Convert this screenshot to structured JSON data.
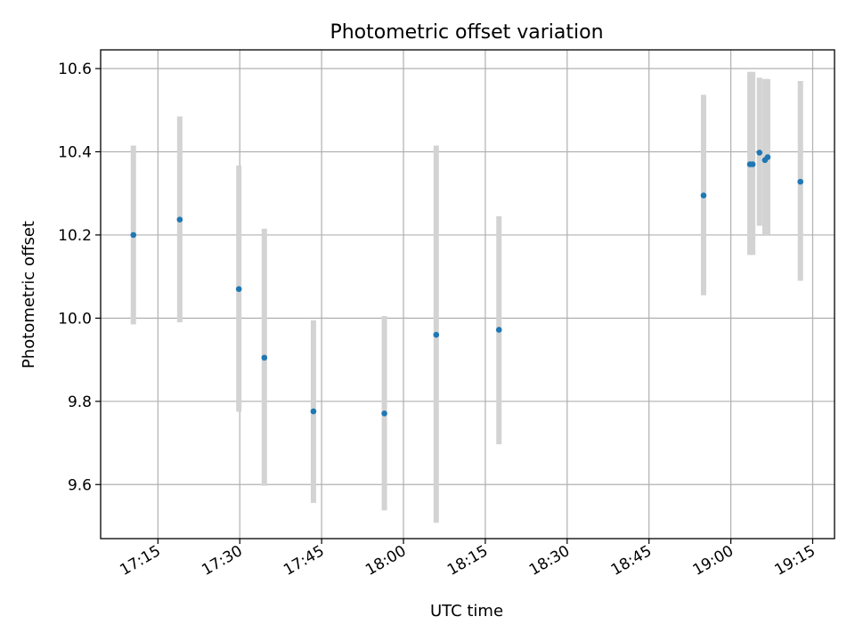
{
  "chart_data": {
    "type": "scatter",
    "title": "Photometric offset variation",
    "xlabel": "UTC time",
    "ylabel": "Photometric offset",
    "xlim": [
      "17:04:30",
      "19:19:00"
    ],
    "ylim": [
      9.47,
      10.645
    ],
    "grid": true,
    "x_ticks": [
      "17:15",
      "17:30",
      "17:45",
      "18:00",
      "18:15",
      "18:30",
      "18:45",
      "19:00",
      "19:15"
    ],
    "y_ticks": [
      9.6,
      9.8,
      10.0,
      10.2,
      10.4,
      10.6
    ],
    "y_tick_labels": [
      "9.6",
      "9.8",
      "10.0",
      "10.2",
      "10.4",
      "10.6"
    ],
    "series": [
      {
        "x": [
          "17:10:30",
          "17:19:00",
          "17:29:50",
          "17:34:30",
          "17:43:30",
          "17:56:30",
          "18:06:00",
          "18:17:30",
          "18:55:00",
          "19:03:30",
          "19:04:00",
          "19:05:15",
          "19:06:15",
          "19:06:45",
          "19:12:45"
        ],
        "y": [
          10.2,
          10.237,
          10.07,
          9.905,
          9.776,
          9.771,
          9.96,
          9.972,
          10.295,
          10.37,
          10.37,
          10.398,
          10.38,
          10.387,
          10.328
        ],
        "yerr_low": [
          9.985,
          9.99,
          9.775,
          9.597,
          9.556,
          9.538,
          9.508,
          9.697,
          10.055,
          10.152,
          10.152,
          10.222,
          10.2,
          10.2,
          10.09
        ],
        "yerr_high": [
          10.415,
          10.485,
          10.367,
          10.215,
          9.995,
          10.005,
          10.415,
          10.245,
          10.537,
          10.592,
          10.592,
          10.578,
          10.575,
          10.575,
          10.57
        ]
      }
    ],
    "colors": {
      "point": "#1f77b4",
      "errorbar": "#d3d3d3",
      "grid": "#b0b0b0",
      "axis": "#000000"
    }
  }
}
